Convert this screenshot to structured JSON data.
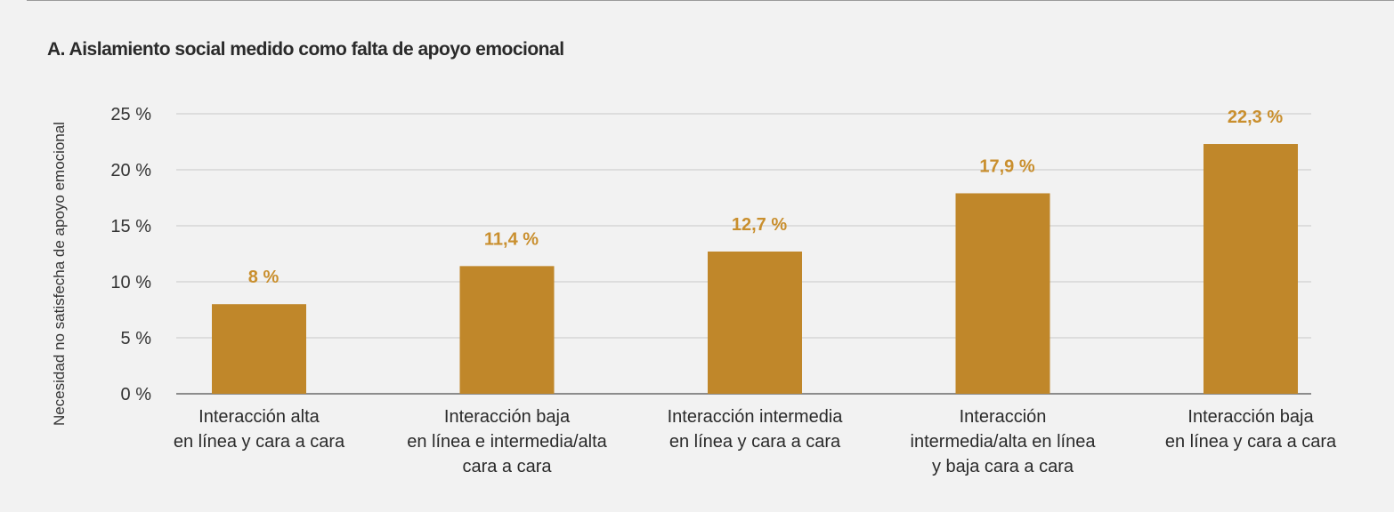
{
  "chart_data": {
    "type": "bar",
    "title": "A. Aislamiento social medido como falta de apoyo emocional",
    "ylabel": "Necesidad no satisfecha de apoyo emocional",
    "xlabel": "",
    "ylim": [
      0,
      25
    ],
    "yticks": [
      0,
      5,
      10,
      15,
      20,
      25
    ],
    "ytick_labels": [
      "0 %",
      "5 %",
      "10 %",
      "15 %",
      "20 %",
      "25 %"
    ],
    "grid": true,
    "bar_color": "#c0872a",
    "label_color": "#c98f2e",
    "categories": [
      [
        "Interacción alta",
        "en línea y cara a cara"
      ],
      [
        "Interacción baja",
        "en línea e intermedia/alta",
        "cara a cara"
      ],
      [
        "Interacción intermedia",
        "en línea y cara a cara"
      ],
      [
        "Interacción",
        "intermedia/alta en línea",
        "y baja cara a cara"
      ],
      [
        "Interacción baja",
        "en línea y cara a cara"
      ]
    ],
    "values": [
      8,
      11.4,
      12.7,
      17.9,
      22.3
    ],
    "value_labels": [
      "8 %",
      "11,4 %",
      "12,7 %",
      "17,9 %",
      "22,3 %"
    ]
  }
}
